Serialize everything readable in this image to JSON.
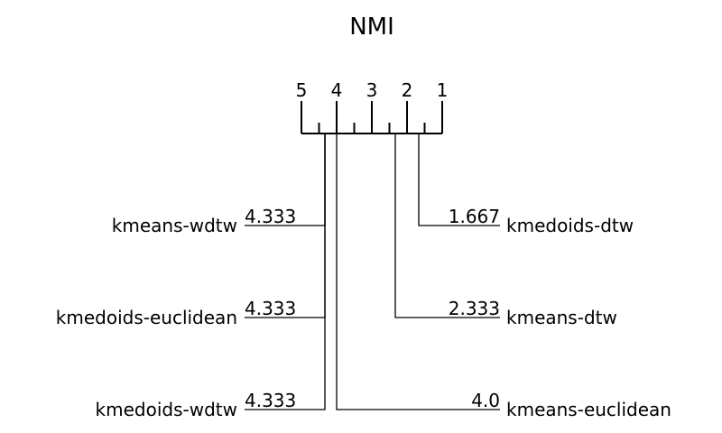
{
  "chart_data": {
    "type": "critical-difference-diagram",
    "title": "NMI",
    "axis": {
      "range": [
        5,
        1
      ],
      "ticks": [
        "5",
        "4",
        "3",
        "2",
        "1"
      ],
      "tick_values": [
        5,
        4,
        3,
        2,
        1
      ],
      "minor_ticks": [
        4.5,
        3.5,
        2.5,
        1.5
      ]
    },
    "left_methods": [
      {
        "name": "kmeans-wdtw",
        "rank": 4.333,
        "rank_label": "4.333"
      },
      {
        "name": "kmedoids-euclidean",
        "rank": 4.333,
        "rank_label": "4.333"
      },
      {
        "name": "kmedoids-wdtw",
        "rank": 4.333,
        "rank_label": "4.333"
      }
    ],
    "right_methods": [
      {
        "name": "kmedoids-dtw",
        "rank": 1.667,
        "rank_label": "1.667"
      },
      {
        "name": "kmeans-dtw",
        "rank": 2.333,
        "rank_label": "2.333"
      },
      {
        "name": "kmeans-euclidean",
        "rank": 4.0,
        "rank_label": "4.0"
      }
    ]
  }
}
